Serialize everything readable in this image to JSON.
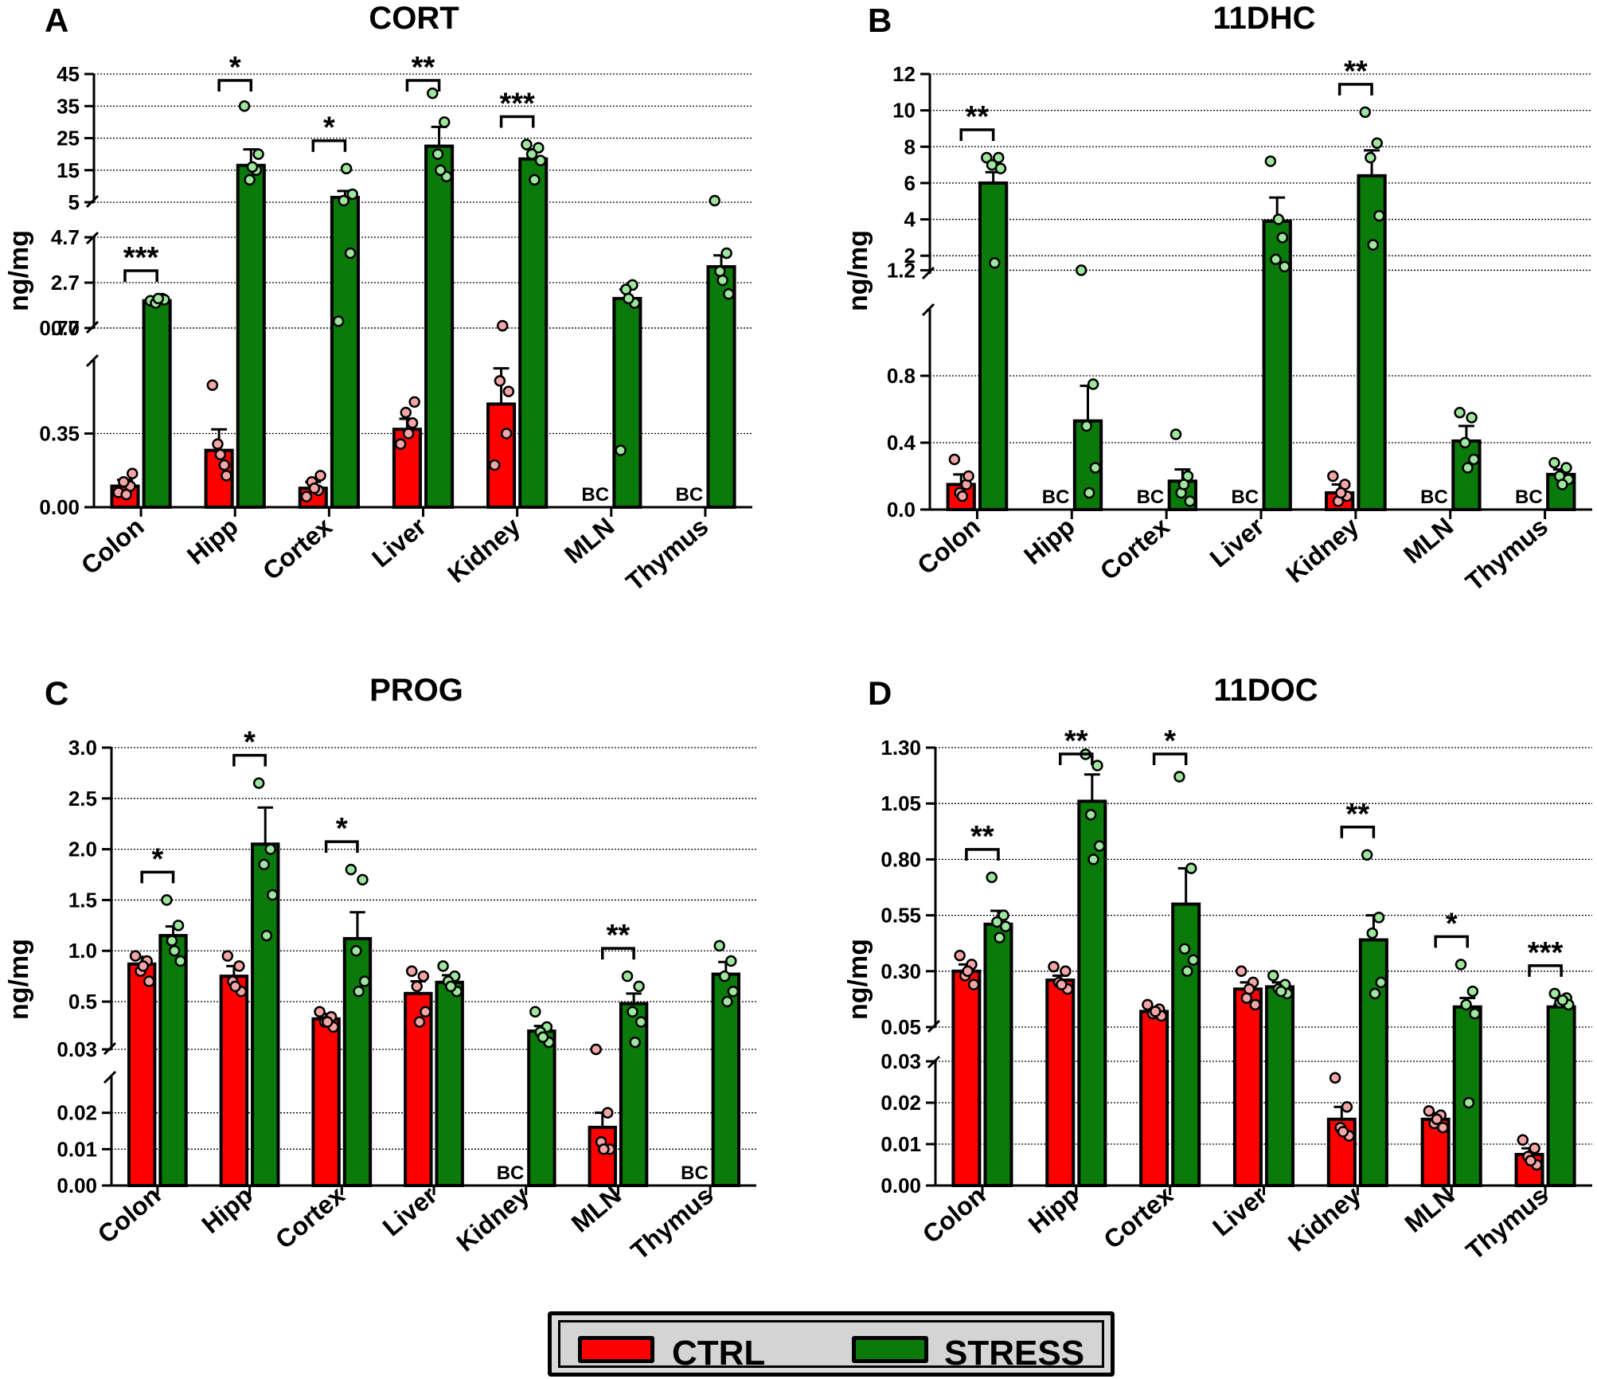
{
  "colors": {
    "ctrl": "#ff0000",
    "stress": "#0a7a0a",
    "ctrl_dot": "#f4a6a6",
    "stress_dot": "#9ee59e"
  },
  "legend": {
    "ctrl_label": "CTRL",
    "stress_label": "STRESS"
  },
  "categories": [
    "Colon",
    "Hipp",
    "Cortex",
    "Liver",
    "Kidney",
    "MLN",
    "Thymus"
  ],
  "chart_data": [
    {
      "panel": "A",
      "type": "bar",
      "title": "CORT",
      "ylabel": "ng/mg",
      "broken_axis": [
        {
          "range": [
            0,
            0.7
          ],
          "ticks": [
            "0.00",
            "0.35",
            "0.70"
          ],
          "tick_values": [
            0,
            0.35,
            0.7
          ]
        },
        {
          "range": [
            0.7,
            4.7
          ],
          "ticks": [
            "0.7",
            "2.7",
            "4.7"
          ],
          "tick_values": [
            0.7,
            2.7,
            4.7
          ]
        },
        {
          "range": [
            5,
            45
          ],
          "ticks": [
            "5",
            "15",
            "25",
            "35",
            "45"
          ],
          "tick_values": [
            5,
            15,
            25,
            35,
            45
          ]
        }
      ],
      "series": [
        {
          "name": "CTRL",
          "means": [
            0.1,
            0.27,
            0.09,
            0.37,
            0.49,
            null,
            null
          ],
          "sem": [
            0.03,
            0.1,
            0.03,
            0.05,
            0.17,
            null,
            null
          ],
          "points": [
            [
              0.07,
              0.1,
              0.12,
              0.16,
              0.06
            ],
            [
              0.58,
              0.2,
              0.3,
              0.15,
              0.25
            ],
            [
              0.05,
              0.08,
              0.12,
              0.15,
              0.09
            ],
            [
              0.3,
              0.4,
              0.45,
              0.5,
              0.35
            ],
            [
              0.2,
              0.35,
              0.6,
              0.55,
              0.8
            ],
            [],
            []
          ]
        },
        {
          "name": "STRESS",
          "means": [
            1.9,
            16.5,
            6.5,
            22.5,
            18.5,
            2.0,
            3.4
          ],
          "sem": [
            0.1,
            5.0,
            2.0,
            6.0,
            3.0,
            0.4,
            0.5
          ],
          "points": [
            [
              1.9,
              2.0,
              1.8,
              1.95,
              2.0
            ],
            [
              35,
              15,
              12,
              20,
              16
            ],
            [
              1.0,
              4.0,
              5.5,
              7.5,
              15.5
            ],
            [
              39,
              30,
              20,
              13,
              15
            ],
            [
              23,
              22,
              20,
              18,
              12
            ],
            [
              0.27,
              2.6,
              2.4,
              1.8,
              2.0
            ],
            [
              5.5,
              4.0,
              3.2,
              2.2,
              2.8
            ]
          ]
        }
      ],
      "below_detection": [
        {
          "category": "MLN",
          "series": "CTRL",
          "label": "BC"
        },
        {
          "category": "Thymus",
          "series": "CTRL",
          "label": "BC"
        }
      ],
      "significance": [
        {
          "category": "Colon",
          "label": "***"
        },
        {
          "category": "Hipp",
          "label": "*"
        },
        {
          "category": "Cortex",
          "label": "*"
        },
        {
          "category": "Liver",
          "label": "**"
        },
        {
          "category": "Kidney",
          "label": "***"
        }
      ]
    },
    {
      "panel": "B",
      "type": "bar",
      "title": "11DHC",
      "ylabel": "ng/mg",
      "broken_axis": [
        {
          "range": [
            0,
            1.2
          ],
          "ticks": [
            "0.0",
            "0.4",
            "0.8",
            "1.2"
          ],
          "tick_values": [
            0,
            0.4,
            0.8,
            1.2
          ]
        },
        {
          "range": [
            1,
            12
          ],
          "ticks": [
            "2",
            "4",
            "6",
            "8",
            "10",
            "12"
          ],
          "tick_values": [
            2,
            4,
            6,
            8,
            10,
            12
          ]
        }
      ],
      "series": [
        {
          "name": "CTRL",
          "means": [
            0.15,
            null,
            null,
            null,
            0.1,
            null,
            null
          ],
          "sem": [
            0.06,
            null,
            null,
            null,
            0.05,
            null,
            null
          ],
          "points": [
            [
              0.3,
              0.15,
              0.1,
              0.2,
              0.08
            ],
            [],
            [],
            [],
            [
              0.2,
              0.15,
              0.05,
              0.08,
              0.1
            ],
            [],
            []
          ]
        },
        {
          "name": "STRESS",
          "means": [
            6.0,
            0.53,
            0.17,
            3.9,
            6.4,
            0.41,
            0.21
          ],
          "sem": [
            0.6,
            0.21,
            0.07,
            1.3,
            1.4,
            0.09,
            0.03
          ],
          "points": [
            [
              7.4,
              7.4,
              7.0,
              6.8,
              1.6
            ],
            [
              1.2,
              0.75,
              0.5,
              0.25,
              0.1
            ],
            [
              0.45,
              0.2,
              0.1,
              0.05,
              0.15
            ],
            [
              7.2,
              3.0,
              1.8,
              1.4,
              4.0
            ],
            [
              9.9,
              8.2,
              7.4,
              4.2,
              2.6
            ],
            [
              0.58,
              0.55,
              0.4,
              0.3,
              0.25
            ],
            [
              0.28,
              0.25,
              0.2,
              0.18,
              0.15
            ]
          ]
        }
      ],
      "below_detection": [
        {
          "category": "Hipp",
          "series": "CTRL",
          "label": "BC"
        },
        {
          "category": "Cortex",
          "series": "CTRL",
          "label": "BC"
        },
        {
          "category": "Liver",
          "series": "CTRL",
          "label": "BC"
        },
        {
          "category": "MLN",
          "series": "CTRL",
          "label": "BC"
        },
        {
          "category": "Thymus",
          "series": "CTRL",
          "label": "BC"
        }
      ],
      "significance": [
        {
          "category": "Colon",
          "label": "**"
        },
        {
          "category": "Kidney",
          "label": "**"
        }
      ]
    },
    {
      "panel": "C",
      "type": "bar",
      "title": "PROG",
      "ylabel": "ng/mg",
      "broken_axis": [
        {
          "range": [
            0,
            0.03
          ],
          "ticks": [
            "0.00",
            "0.01",
            "0.02",
            "0.03"
          ],
          "tick_values": [
            0,
            0.01,
            0.02,
            0.03
          ]
        },
        {
          "range": [
            0.03,
            3.0
          ],
          "ticks": [
            "0.5",
            "1.0",
            "1.5",
            "2.0",
            "2.5",
            "3.0"
          ],
          "tick_values": [
            0.5,
            1.0,
            1.5,
            2.0,
            2.5,
            3.0
          ]
        }
      ],
      "series": [
        {
          "name": "CTRL",
          "means": [
            0.87,
            0.75,
            0.33,
            0.58,
            null,
            0.016,
            null
          ],
          "sem": [
            0.07,
            0.1,
            0.05,
            0.12,
            null,
            0.004,
            null
          ],
          "points": [
            [
              0.95,
              0.9,
              0.8,
              0.7,
              0.85
            ],
            [
              0.95,
              0.85,
              0.7,
              0.6,
              0.65
            ],
            [
              0.4,
              0.35,
              0.3,
              0.25,
              0.3
            ],
            [
              0.8,
              0.75,
              0.65,
              0.4,
              0.3
            ],
            [],
            [
              0.03,
              0.02,
              0.012,
              0.01,
              0.01
            ],
            []
          ]
        },
        {
          "name": "STRESS",
          "means": [
            1.15,
            2.05,
            1.12,
            0.69,
            0.21,
            0.48,
            0.77
          ],
          "sem": [
            0.09,
            0.36,
            0.26,
            0.07,
            0.05,
            0.1,
            0.12
          ],
          "points": [
            [
              1.5,
              1.25,
              1.1,
              0.9,
              1.0
            ],
            [
              2.65,
              2.0,
              1.85,
              1.55,
              1.15
            ],
            [
              1.8,
              1.7,
              1.0,
              0.7,
              0.6
            ],
            [
              0.85,
              0.75,
              0.7,
              0.6,
              0.65
            ],
            [
              0.4,
              0.25,
              0.2,
              0.1,
              0.15
            ],
            [
              0.75,
              0.65,
              0.4,
              0.3,
              0.1
            ],
            [
              1.05,
              0.9,
              0.75,
              0.6,
              0.5
            ]
          ]
        }
      ],
      "below_detection": [
        {
          "category": "Kidney",
          "series": "CTRL",
          "label": "BC"
        },
        {
          "category": "Thymus",
          "series": "CTRL",
          "label": "BC"
        }
      ],
      "significance": [
        {
          "category": "Colon",
          "label": "*"
        },
        {
          "category": "Hipp",
          "label": "*"
        },
        {
          "category": "Cortex",
          "label": "*"
        },
        {
          "category": "MLN",
          "label": "**"
        }
      ]
    },
    {
      "panel": "D",
      "type": "bar",
      "title": "11DOC",
      "ylabel": "ng/mg",
      "broken_axis": [
        {
          "range": [
            0,
            0.03
          ],
          "ticks": [
            "0.00",
            "0.01",
            "0.02",
            "0.03"
          ],
          "tick_values": [
            0,
            0.01,
            0.02,
            0.03
          ]
        },
        {
          "range": [
            0.05,
            1.3
          ],
          "ticks": [
            "0.05",
            "0.30",
            "0.55",
            "0.80",
            "1.05",
            "1.30"
          ],
          "tick_values": [
            0.05,
            0.3,
            0.55,
            0.8,
            1.05,
            1.3
          ]
        }
      ],
      "series": [
        {
          "name": "CTRL",
          "means": [
            0.3,
            0.26,
            0.12,
            0.22,
            0.016,
            0.016,
            0.0075
          ],
          "sem": [
            0.03,
            0.02,
            0.01,
            0.03,
            0.003,
            0.0015,
            0.0015
          ],
          "points": [
            [
              0.37,
              0.33,
              0.28,
              0.24,
              0.3
            ],
            [
              0.32,
              0.3,
              0.25,
              0.22,
              0.24
            ],
            [
              0.15,
              0.13,
              0.11,
              0.1,
              0.12
            ],
            [
              0.3,
              0.25,
              0.18,
              0.15,
              0.22
            ],
            [
              0.026,
              0.019,
              0.014,
              0.012,
              0.013
            ],
            [
              0.018,
              0.017,
              0.015,
              0.014,
              0.016
            ],
            [
              0.011,
              0.009,
              0.007,
              0.005,
              0.006
            ]
          ]
        },
        {
          "name": "STRESS",
          "means": [
            0.51,
            1.06,
            0.6,
            0.23,
            0.44,
            0.14,
            0.14
          ],
          "sem": [
            0.06,
            0.12,
            0.16,
            0.02,
            0.11,
            0.04,
            0.01
          ],
          "points": [
            [
              0.72,
              0.55,
              0.52,
              0.5,
              0.45
            ],
            [
              1.27,
              1.22,
              1.0,
              0.86,
              0.8
            ],
            [
              1.17,
              0.76,
              0.4,
              0.35,
              0.3
            ],
            [
              0.28,
              0.24,
              0.22,
              0.2,
              0.21
            ],
            [
              0.82,
              0.54,
              0.47,
              0.25,
              0.2
            ],
            [
              0.33,
              0.21,
              0.15,
              0.11,
              0.02
            ],
            [
              0.2,
              0.18,
              0.16,
              0.15,
              0.17
            ]
          ]
        }
      ],
      "below_detection": [],
      "significance": [
        {
          "category": "Colon",
          "label": "**"
        },
        {
          "category": "Hipp",
          "label": "**"
        },
        {
          "category": "Cortex",
          "label": "*"
        },
        {
          "category": "Kidney",
          "label": "**"
        },
        {
          "category": "MLN",
          "label": "*"
        },
        {
          "category": "Thymus",
          "label": "***"
        }
      ]
    }
  ]
}
